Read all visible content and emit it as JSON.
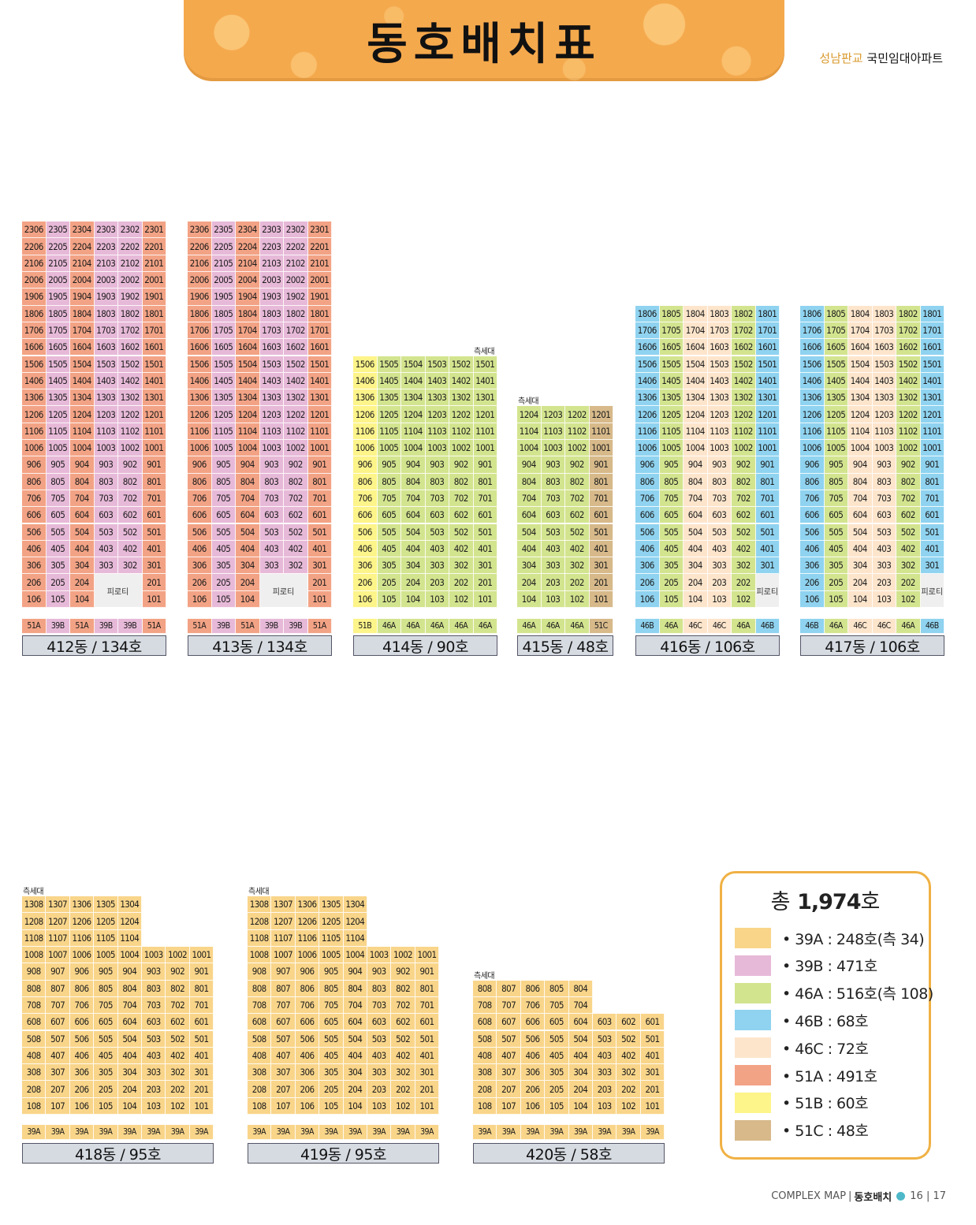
{
  "header": {
    "title": "동호배치표",
    "brand_place": "성남판교",
    "brand_name": "국민임대아파트"
  },
  "colors": {
    "39A": "#f9d58a",
    "39B": "#e7b9d8",
    "46A": "#d3e48f",
    "46B": "#8fd3f0",
    "46C": "#fde5cc",
    "51A": "#f3a385",
    "51B": "#fdf48a",
    "51C": "#d7b98a"
  },
  "texts": {
    "pilotis": "피로티",
    "side": "측세대"
  },
  "buildings": [
    {
      "id": "412",
      "label": "412동 / 134호",
      "floors": 23,
      "side_floor": null,
      "cols": [
        "06",
        "05",
        "04",
        "03",
        "02",
        "01"
      ],
      "types": [
        "51A",
        "39B",
        "51A",
        "39B",
        "39B",
        "51A"
      ],
      "pilotis_floors": [
        1,
        2
      ],
      "pilotis_cols": [
        3,
        4
      ]
    },
    {
      "id": "413",
      "label": "413동 / 134호",
      "floors": 23,
      "side_floor": null,
      "cols": [
        "06",
        "05",
        "04",
        "03",
        "02",
        "01"
      ],
      "types": [
        "51A",
        "39B",
        "51A",
        "39B",
        "39B",
        "51A"
      ],
      "pilotis_floors": [
        1,
        2
      ],
      "pilotis_cols": [
        3,
        4
      ]
    },
    {
      "id": "414",
      "label": "414동 / 90호",
      "floors": 15,
      "side_floor": 15,
      "side_pos": "right",
      "cols": [
        "06",
        "05",
        "04",
        "03",
        "02",
        "01"
      ],
      "types": [
        "51B",
        "46A",
        "46A",
        "46A",
        "46A",
        "46A"
      ],
      "pilotis_floors": [],
      "pilotis_cols": []
    },
    {
      "id": "415",
      "label": "415동 / 48호",
      "floors": 12,
      "side_floor": 12,
      "side_pos": "left",
      "cols": [
        "04",
        "03",
        "02",
        "01"
      ],
      "types": [
        "46A",
        "46A",
        "46A",
        "51C"
      ],
      "pilotis_floors": [],
      "pilotis_cols": []
    },
    {
      "id": "416",
      "label": "416동 / 106호",
      "floors": 18,
      "side_floor": null,
      "cols": [
        "06",
        "05",
        "04",
        "03",
        "02",
        "01"
      ],
      "types": [
        "46B",
        "46A",
        "46C",
        "46C",
        "46A",
        "46B"
      ],
      "pilotis_floors": [
        1,
        2
      ],
      "pilotis_cols": [
        5
      ]
    },
    {
      "id": "417",
      "label": "417동 / 106호",
      "floors": 18,
      "side_floor": null,
      "cols": [
        "06",
        "05",
        "04",
        "03",
        "02",
        "01"
      ],
      "types": [
        "46B",
        "46A",
        "46C",
        "46C",
        "46A",
        "46B"
      ],
      "pilotis_floors": [
        1,
        2
      ],
      "pilotis_cols": [
        5
      ]
    },
    {
      "id": "418",
      "label": "418동 / 95호",
      "floors": 13,
      "side_floor": 13,
      "side_pos": "left",
      "cols": [
        "08",
        "07",
        "06",
        "05",
        "04",
        "03",
        "02",
        "01"
      ],
      "types": [
        "39A",
        "39A",
        "39A",
        "39A",
        "39A",
        "39A",
        "39A",
        "39A"
      ],
      "upper_from": 11,
      "upper_cols": [
        "08",
        "07",
        "06",
        "05",
        "04"
      ]
    },
    {
      "id": "419",
      "label": "419동 / 95호",
      "floors": 13,
      "side_floor": 13,
      "side_pos": "left",
      "cols": [
        "08",
        "07",
        "06",
        "05",
        "04",
        "03",
        "02",
        "01"
      ],
      "types": [
        "39A",
        "39A",
        "39A",
        "39A",
        "39A",
        "39A",
        "39A",
        "39A"
      ],
      "upper_from": 11,
      "upper_cols": [
        "08",
        "07",
        "06",
        "05",
        "04"
      ]
    },
    {
      "id": "420",
      "label": "420동 / 58호",
      "floors": 8,
      "side_floor": 8,
      "side_pos": "left",
      "cols": [
        "08",
        "07",
        "06",
        "05",
        "04",
        "03",
        "02",
        "01"
      ],
      "types": [
        "39A",
        "39A",
        "39A",
        "39A",
        "39A",
        "39A",
        "39A",
        "39A"
      ],
      "upper_from": 7,
      "upper_cols": [
        "08",
        "07",
        "06",
        "05",
        "04"
      ]
    }
  ],
  "legend": {
    "total_prefix": "총",
    "total_value": "1,974",
    "total_suffix": "호",
    "items": [
      {
        "type": "39A",
        "text": "• 39A : 248호(측 34)"
      },
      {
        "type": "39B",
        "text": "• 39B : 471호"
      },
      {
        "type": "46A",
        "text": "• 46A : 516호(측 108)"
      },
      {
        "type": "46B",
        "text": "• 46B :   68호"
      },
      {
        "type": "46C",
        "text": "• 46C :   72호"
      },
      {
        "type": "51A",
        "text": "• 51A : 491호"
      },
      {
        "type": "51B",
        "text": "• 51B :   60호"
      },
      {
        "type": "51C",
        "text": "• 51C :   48호"
      }
    ]
  },
  "footer": {
    "left": "COMPLEX MAP",
    "sep": "|",
    "section": "동호배치",
    "pages": "16 | 17"
  }
}
